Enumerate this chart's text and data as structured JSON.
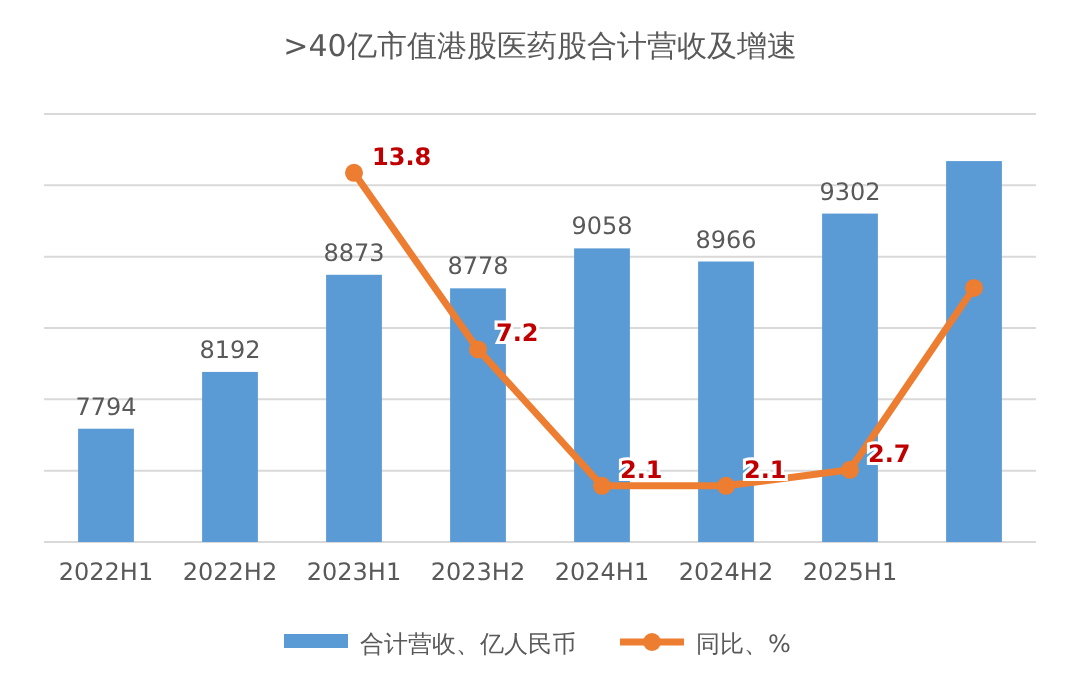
{
  "chart_data": {
    "type": "bar",
    "title": ">40亿市值港股医药股合计营收及增速",
    "categories": [
      "2022H1",
      "2022H2",
      "2023H1",
      "2023H2",
      "2024H1",
      "2024H2",
      "2025H1",
      null
    ],
    "series": [
      {
        "name": "合计营收、亿人民币",
        "color": "#5b9bd5",
        "values": [
          7794,
          8192,
          8873,
          8778,
          9058,
          8966,
          9302,
          9670
        ],
        "value_labels": [
          "7794",
          "8192",
          "8873",
          "8778",
          "9058",
          "8966",
          "9302",
          null
        ]
      },
      {
        "name": "同比、%",
        "type": "line",
        "axis": "y2",
        "color": "#ed7d31",
        "values": [
          null,
          null,
          13.8,
          7.2,
          2.1,
          2.1,
          2.7,
          9.5
        ],
        "value_labels": [
          null,
          null,
          "13.8",
          "7.2",
          "2.1",
          "2.1",
          "2.7",
          null
        ]
      }
    ],
    "ylim": [
      7000,
      10000
    ],
    "yticks": [
      {
        "value": 7000,
        "label": null
      },
      {
        "value": 7500,
        "label": null
      },
      {
        "value": 8000,
        "label": null
      },
      {
        "value": 8500,
        "label": null
      },
      {
        "value": 9000,
        "label": null
      },
      {
        "value": 9500,
        "label": null
      },
      {
        "value": 10000,
        "label": null
      }
    ],
    "y2lim": [
      0,
      16
    ],
    "grid": "y",
    "legend": "bottom",
    "tick_labels": "x",
    "marker": "circle",
    "line_style": "solid"
  }
}
